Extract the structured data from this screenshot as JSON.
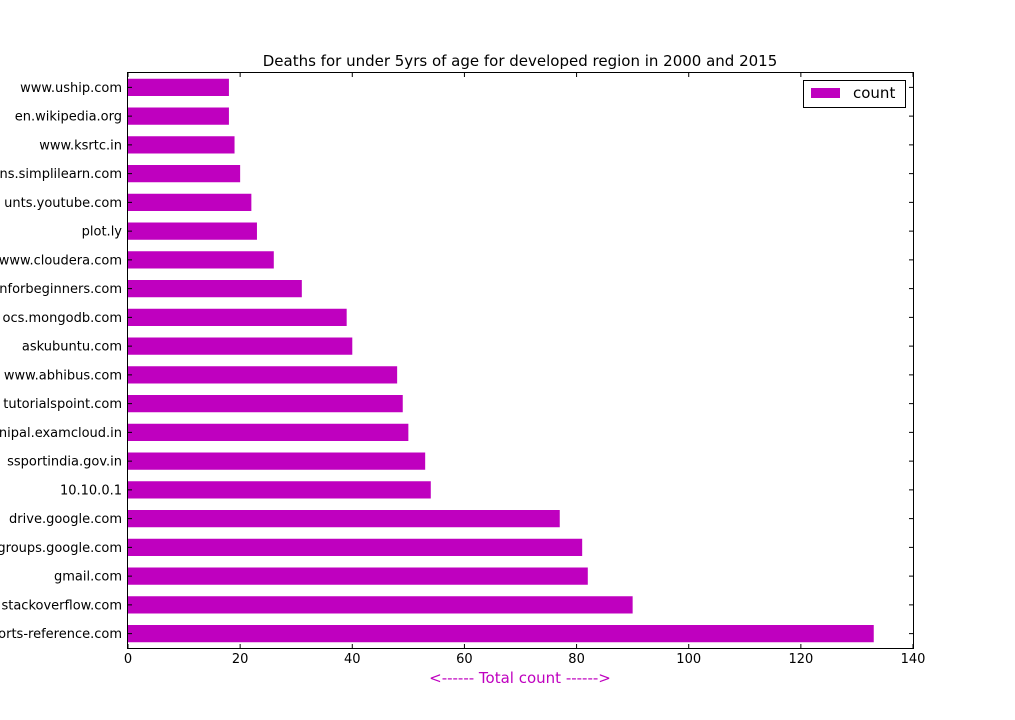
{
  "chart_data": {
    "type": "bar",
    "orientation": "horizontal",
    "title": "Deaths for under 5yrs of age for developed region in 2000 and 2015",
    "xlabel": "<------ Total count ------>",
    "ylabel": "",
    "xlim": [
      0,
      140
    ],
    "xticks": [
      "0",
      "20",
      "40",
      "60",
      "80",
      "100",
      "120",
      "140"
    ],
    "grid": false,
    "legend_position": "top-right",
    "bar_color": "#bf00bf",
    "categories": [
      "www.uship.com",
      "en.wikipedia.org",
      "www.ksrtc.in",
      "ns.simplilearn.com",
      "unts.youtube.com",
      "plot.ly",
      "www.cloudera.com",
      "nforbeginners.com",
      "ocs.mongodb.com",
      "askubuntu.com",
      "www.abhibus.com",
      "tutorialspoint.com",
      "nipal.examcloud.in",
      "ssportindia.gov.in",
      "10.10.0.1",
      "drive.google.com",
      "groups.google.com",
      "gmail.com",
      "stackoverflow.com",
      "orts-reference.com"
    ],
    "series": [
      {
        "name": "count",
        "values": [
          18,
          18,
          19,
          20,
          22,
          23,
          26,
          31,
          39,
          40,
          48,
          49,
          50,
          53,
          54,
          77,
          81,
          82,
          90,
          133
        ]
      }
    ]
  }
}
